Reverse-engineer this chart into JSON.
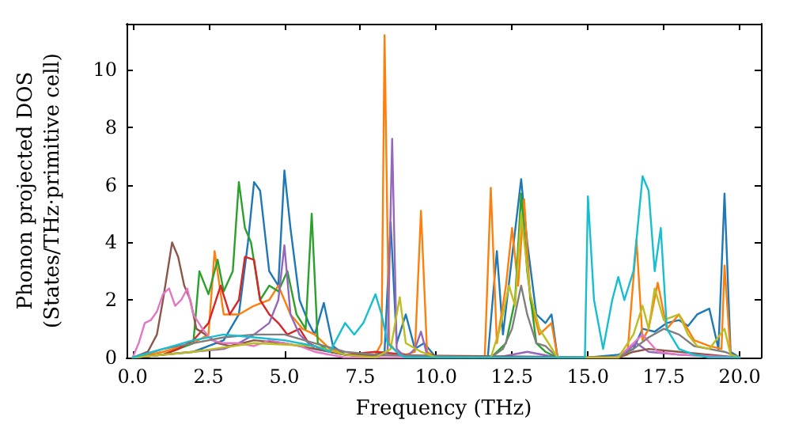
{
  "chart_data": {
    "type": "line",
    "xlabel": "Frequency (THz)",
    "ylabel": "Phonon projected DOS\n(States/THz·primitive cell)",
    "xlim": [
      -0.2,
      20.7
    ],
    "ylim": [
      0,
      11.6
    ],
    "xticks": [
      {
        "value": 0,
        "label": "0.0"
      },
      {
        "value": 2.5,
        "label": "2.5"
      },
      {
        "value": 5,
        "label": "5.0"
      },
      {
        "value": 7.5,
        "label": "7.5"
      },
      {
        "value": 10,
        "label": "10.0"
      },
      {
        "value": 12.5,
        "label": "12.5"
      },
      {
        "value": 15,
        "label": "15.0"
      },
      {
        "value": 17.5,
        "label": "17.5"
      },
      {
        "value": 20,
        "label": "20.0"
      }
    ],
    "yticks": [
      0,
      2,
      4,
      6,
      8,
      10
    ],
    "grid": false,
    "marker": "none",
    "line_style": "solid",
    "series": [
      {
        "color": "#1f77b4",
        "x": [
          0,
          1,
          2,
          2.5,
          3,
          3.5,
          3.8,
          4.0,
          4.2,
          4.5,
          4.8,
          5.0,
          5.2,
          5.5,
          5.8,
          6.0,
          6.3,
          6.6,
          7,
          8,
          8.3,
          8.5,
          8.7,
          9.0,
          9.3,
          9.6,
          10,
          11.7,
          12.0,
          12.2,
          12.5,
          12.8,
          13.0,
          13.3,
          13.6,
          13.8,
          14,
          15,
          16,
          16.5,
          16.8,
          17.2,
          17.6,
          18.0,
          18.3,
          18.6,
          19.0,
          19.3,
          19.5,
          19.7,
          20
        ],
        "values": [
          0,
          0.1,
          0.2,
          0.4,
          0.6,
          1.5,
          4,
          6.1,
          5.8,
          3,
          2.5,
          6.5,
          4.5,
          2,
          1.2,
          0.8,
          1.9,
          0.4,
          0.1,
          0.1,
          0.2,
          4.7,
          0.5,
          1.5,
          0.3,
          0.5,
          0,
          0,
          3.7,
          0.8,
          3.5,
          6.2,
          4,
          1.5,
          1.2,
          1.5,
          0,
          0,
          0.1,
          0.3,
          1,
          0.9,
          1.2,
          1.3,
          1.1,
          1.5,
          1.7,
          0.3,
          5.7,
          0.2,
          0
        ]
      },
      {
        "color": "#ff7f0e",
        "x": [
          0,
          1,
          2,
          2.5,
          2.7,
          3.0,
          3.5,
          4.0,
          4.5,
          4.8,
          5.2,
          5.6,
          6,
          6.5,
          7,
          8,
          8.2,
          8.3,
          8.45,
          8.7,
          9.0,
          9.3,
          9.5,
          9.7,
          10,
          11.6,
          11.8,
          12.0,
          12.3,
          12.5,
          12.7,
          12.9,
          13.1,
          13.4,
          13.8,
          14,
          16,
          16.3,
          16.6,
          16.8,
          17.0,
          17.3,
          17.6,
          18.0,
          18.5,
          19,
          19.4,
          19.5,
          19.7,
          20
        ],
        "values": [
          0,
          0.2,
          0.5,
          0.8,
          3.7,
          1.5,
          1.5,
          1.8,
          2.0,
          2.5,
          1.5,
          1.0,
          0.8,
          0.3,
          0.1,
          0.1,
          0.5,
          11.2,
          0.5,
          0.2,
          0.1,
          0.2,
          5.1,
          0.2,
          0,
          0,
          5.9,
          0.5,
          2.5,
          4.5,
          2.5,
          5.5,
          2,
          0.8,
          1.2,
          0,
          0,
          0.1,
          4.1,
          0.6,
          1.0,
          2.6,
          1.0,
          1.5,
          0.6,
          0.4,
          0.3,
          3.2,
          0.1,
          0
        ]
      },
      {
        "color": "#2ca02c",
        "x": [
          0,
          1,
          2,
          2.2,
          2.5,
          2.8,
          3.0,
          3.3,
          3.5,
          3.7,
          3.9,
          4.2,
          4.5,
          4.8,
          5.1,
          5.4,
          5.7,
          5.9,
          6.1,
          6.5,
          7,
          8,
          11.8,
          12.3,
          12.6,
          12.8,
          13.0,
          13.3,
          13.6,
          14
        ],
        "values": [
          0,
          0.1,
          0.5,
          3.0,
          2.2,
          3.4,
          2.3,
          3.0,
          6.1,
          4.5,
          4.0,
          2.0,
          2.5,
          2.3,
          3.0,
          1.5,
          1.0,
          5.0,
          0.5,
          0.2,
          0.1,
          0,
          0,
          0.5,
          2,
          5.7,
          3,
          0.5,
          0.2,
          0
        ]
      },
      {
        "color": "#d62728",
        "x": [
          0,
          1,
          1.5,
          2,
          2.5,
          2.9,
          3.2,
          3.5,
          3.7,
          4.0,
          4.2,
          4.5,
          4.8,
          5.1,
          5.5,
          5.8,
          6.2,
          7,
          8,
          9,
          10
        ],
        "values": [
          0,
          0.1,
          0.3,
          0.6,
          1.2,
          2.5,
          1.5,
          2.0,
          3.5,
          3.4,
          2.0,
          1.5,
          1.2,
          0.8,
          1.0,
          0.5,
          0.3,
          0.1,
          0.2,
          0.1,
          0
        ]
      },
      {
        "color": "#9467bd",
        "x": [
          0,
          2,
          3,
          3.5,
          4,
          4.5,
          4.8,
          5.0,
          5.2,
          5.5,
          6,
          7,
          8,
          8.4,
          8.55,
          8.7,
          9,
          9.3,
          9.5,
          9.7,
          10,
          12,
          13,
          14,
          16,
          16.6,
          17,
          18,
          20
        ],
        "values": [
          0,
          0.2,
          0.3,
          0.5,
          0.8,
          1.2,
          2.0,
          3.9,
          1.5,
          0.8,
          0.3,
          0.1,
          0,
          0.2,
          7.6,
          0.3,
          0,
          0.3,
          0.9,
          0.1,
          0,
          0,
          0.2,
          0,
          0,
          0.5,
          0.2,
          0.1,
          0
        ]
      },
      {
        "color": "#8c564b",
        "x": [
          0,
          0.5,
          0.8,
          1.0,
          1.3,
          1.5,
          1.7,
          1.9,
          2.1,
          2.4,
          2.8,
          3.2,
          3.6,
          4,
          5,
          6,
          7,
          16,
          16.5,
          17,
          18,
          19,
          20
        ],
        "values": [
          0,
          0.2,
          0.8,
          2.0,
          4.0,
          3.5,
          2.5,
          2.0,
          1.0,
          0.8,
          0.5,
          0.4,
          0.5,
          0.6,
          0.5,
          0.3,
          0.1,
          0,
          0.2,
          0.3,
          0.2,
          0.1,
          0
        ]
      },
      {
        "color": "#e377c2",
        "x": [
          0,
          0.2,
          0.4,
          0.6,
          0.8,
          1.0,
          1.2,
          1.4,
          1.6,
          1.8,
          2.0,
          2.3,
          2.6,
          3,
          3.5,
          4,
          4.5,
          5,
          5.5,
          6,
          7,
          16,
          16.8,
          17.3,
          18,
          20
        ],
        "values": [
          0,
          0.5,
          1.2,
          1.3,
          1.6,
          2.2,
          2.4,
          1.8,
          2.0,
          2.4,
          1.5,
          1.0,
          0.6,
          0.5,
          0.5,
          0.4,
          0.6,
          0.5,
          0.4,
          0.2,
          0,
          0,
          0.8,
          0.2,
          0.1,
          0
        ]
      },
      {
        "color": "#7f7f7f",
        "x": [
          0,
          1,
          2,
          3,
          4,
          5,
          6,
          7,
          8,
          11.8,
          12.2,
          12.5,
          12.8,
          13.0,
          13.3,
          13.6,
          14,
          16,
          16.5,
          17,
          17.5,
          18,
          18.5,
          19,
          19.5,
          20
        ],
        "values": [
          0,
          0.3,
          0.5,
          0.7,
          0.8,
          0.8,
          0.5,
          0.2,
          0.1,
          0,
          0.3,
          1.0,
          2.5,
          1.5,
          0.5,
          0.4,
          0,
          0,
          0.3,
          0.7,
          1.0,
          0.8,
          0.4,
          0.3,
          0.2,
          0
        ]
      },
      {
        "color": "#bcbd22",
        "x": [
          0,
          2,
          4,
          6,
          7,
          8,
          8.5,
          8.8,
          9.0,
          9.5,
          10,
          11.8,
          12.1,
          12.4,
          12.6,
          12.8,
          13.1,
          13.4,
          14,
          16,
          16.5,
          16.8,
          17.0,
          17.2,
          17.5,
          18,
          18.3,
          18.6,
          19,
          19.5,
          19.7,
          20
        ],
        "values": [
          0,
          0.2,
          0.5,
          0.4,
          0.1,
          0,
          0.3,
          2.1,
          0.5,
          0.2,
          0,
          0,
          1.0,
          2.5,
          1.8,
          5.0,
          2.2,
          1.0,
          0,
          0,
          0.8,
          1.8,
          1.0,
          2.4,
          1.3,
          1.5,
          0.8,
          0.4,
          0.3,
          1.0,
          0.1,
          0
        ]
      },
      {
        "color": "#17becf",
        "x": [
          0,
          1,
          2,
          3,
          4,
          5,
          6,
          6.5,
          7,
          7.3,
          7.6,
          8.0,
          8.2,
          8.4,
          8.8,
          9,
          10,
          14.9,
          15.0,
          15.2,
          15.5,
          15.8,
          16.0,
          16.2,
          16.5,
          16.8,
          17.0,
          17.2,
          17.4,
          17.6,
          18.0,
          18.5,
          19,
          20
        ],
        "values": [
          0,
          0.3,
          0.6,
          0.8,
          0.7,
          0.6,
          0.4,
          0.2,
          1.2,
          0.8,
          1.2,
          2.2,
          1.5,
          0.5,
          0.1,
          0,
          0,
          0,
          5.6,
          2.0,
          0.3,
          2.0,
          2.8,
          2.0,
          3.0,
          6.3,
          5.8,
          3.0,
          4.5,
          1.0,
          0.3,
          0.1,
          0,
          0
        ]
      }
    ]
  }
}
